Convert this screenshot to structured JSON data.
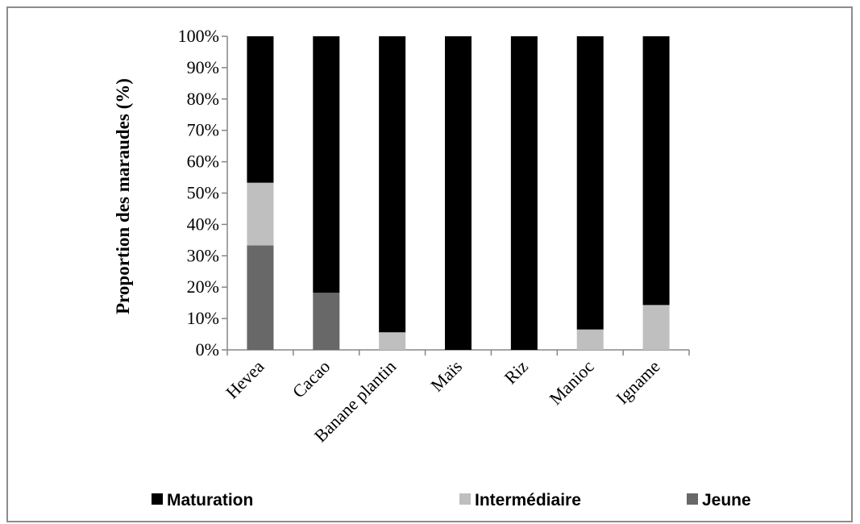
{
  "chart_data": {
    "type": "bar",
    "stacked": true,
    "percent": true,
    "categories": [
      "Hevea",
      "Cacao",
      "Banane plantin",
      "Maïs",
      "Riz",
      "Manioc",
      "Igname"
    ],
    "series": [
      {
        "name": "Jeune",
        "color": "#686868",
        "values": [
          33.3,
          18.2,
          0,
          0,
          0,
          0,
          0
        ]
      },
      {
        "name": "Intermédiaire",
        "color": "#bfbfbf",
        "values": [
          20,
          0,
          5.6,
          0,
          0,
          6.5,
          14.3
        ]
      },
      {
        "name": "Maturation",
        "color": "#000000",
        "values": [
          46.7,
          81.8,
          94.4,
          100,
          100,
          93.5,
          85.7
        ]
      }
    ],
    "ylabel": "Proportion des maraudes (%)",
    "xlabel": "",
    "ylim": [
      0,
      100
    ],
    "y_ticks": [
      "0%",
      "10%",
      "20%",
      "30%",
      "40%",
      "50%",
      "60%",
      "70%",
      "80%",
      "90%",
      "100%"
    ],
    "grid": false,
    "legend": {
      "position": "bottom",
      "order": [
        "Maturation",
        "Intermédiaire",
        "Jeune"
      ]
    }
  }
}
